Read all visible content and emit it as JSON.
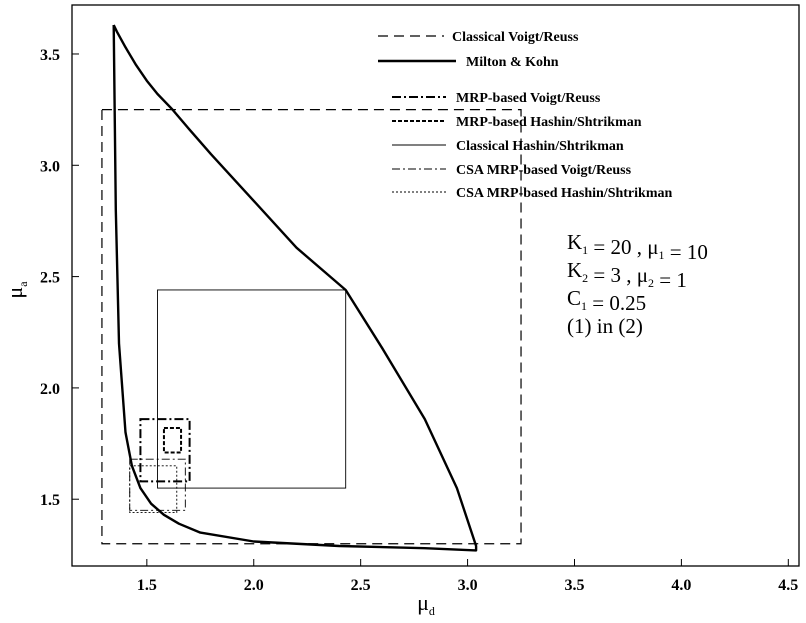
{
  "chart_data": {
    "type": "line",
    "title": "",
    "xlabel": {
      "base": "μ",
      "sub": "d"
    },
    "ylabel": {
      "base": "μ",
      "sub": "a"
    },
    "xlim": [
      1.15,
      4.55
    ],
    "ylim": [
      1.2,
      3.72
    ],
    "xticks": [
      "1.5",
      "2.0",
      "2.5",
      "3.0",
      "3.5",
      "4.0",
      "4.5"
    ],
    "xtick_values": [
      1.5,
      2.0,
      2.5,
      3.0,
      3.5,
      4.0,
      4.5
    ],
    "yticks": [
      "1.5",
      "2.0",
      "2.5",
      "3.0",
      "3.5"
    ],
    "ytick_values": [
      1.5,
      2.0,
      2.5,
      3.0,
      3.5
    ],
    "grid": false,
    "legend_position": "top-right",
    "series": [
      {
        "name": "Classical Voigt/Reuss",
        "style": "dashed",
        "kind": "rect",
        "bounds": {
          "x": [
            1.29,
            3.25
          ],
          "y": [
            1.3,
            3.25
          ]
        }
      },
      {
        "name": "Milton & Kohn",
        "style": "solid-thick",
        "kind": "curve",
        "x": [
          1.345,
          1.36,
          1.4,
          1.45,
          1.5,
          1.55,
          1.62,
          1.7,
          1.8,
          2.0,
          2.2,
          2.43,
          2.6,
          2.8,
          2.95,
          3.04,
          3.04,
          2.8,
          2.4,
          2.0,
          1.75,
          1.65,
          1.58,
          1.52,
          1.47,
          1.43,
          1.4,
          1.37,
          1.355,
          1.345
        ],
        "y": [
          3.63,
          3.6,
          3.53,
          3.45,
          3.38,
          3.32,
          3.25,
          3.16,
          3.05,
          2.84,
          2.63,
          2.44,
          2.18,
          1.86,
          1.55,
          1.29,
          1.27,
          1.28,
          1.29,
          1.31,
          1.35,
          1.39,
          1.43,
          1.48,
          1.55,
          1.65,
          1.8,
          2.2,
          2.8,
          3.63
        ]
      },
      {
        "name": "MRP-based Voigt/Reuss",
        "style": "dashdot-thick",
        "kind": "rect",
        "bounds": {
          "x": [
            1.47,
            1.7
          ],
          "y": [
            1.58,
            1.86
          ]
        }
      },
      {
        "name": "MRP-based Hashin/Shtrikman",
        "style": "dotted-thick",
        "kind": "rect",
        "bounds": {
          "x": [
            1.58,
            1.66
          ],
          "y": [
            1.71,
            1.82
          ]
        }
      },
      {
        "name": "Classical Hashin/Shtrikman",
        "style": "solid-thin",
        "kind": "rect",
        "bounds": {
          "x": [
            1.55,
            2.43
          ],
          "y": [
            1.55,
            2.44
          ]
        }
      },
      {
        "name": "CSA MRP-based Voigt/Reuss",
        "style": "dashdot-thin",
        "kind": "rect",
        "bounds": {
          "x": [
            1.42,
            1.68
          ],
          "y": [
            1.45,
            1.68
          ]
        }
      },
      {
        "name": "CSA MRP-based Hashin/Shtrikman",
        "style": "dotted-thin",
        "kind": "rect",
        "bounds": {
          "x": [
            1.42,
            1.64
          ],
          "y": [
            1.44,
            1.65
          ]
        }
      }
    ],
    "annotations": [
      {
        "parts": [
          [
            "K",
            "1"
          ],
          [
            " = 20 , μ",
            "1"
          ],
          [
            " = 10",
            ""
          ]
        ]
      },
      {
        "parts": [
          [
            "K",
            "2"
          ],
          [
            " =  3 , μ",
            "2"
          ],
          [
            " =  1",
            ""
          ]
        ]
      },
      {
        "parts": [
          [
            "C",
            "1"
          ],
          [
            " = 0.25",
            ""
          ]
        ]
      },
      {
        "parts": [
          [
            "(1) in (2)",
            ""
          ]
        ]
      }
    ]
  },
  "colors": {
    "ink": "#000000",
    "background": "#ffffff"
  }
}
